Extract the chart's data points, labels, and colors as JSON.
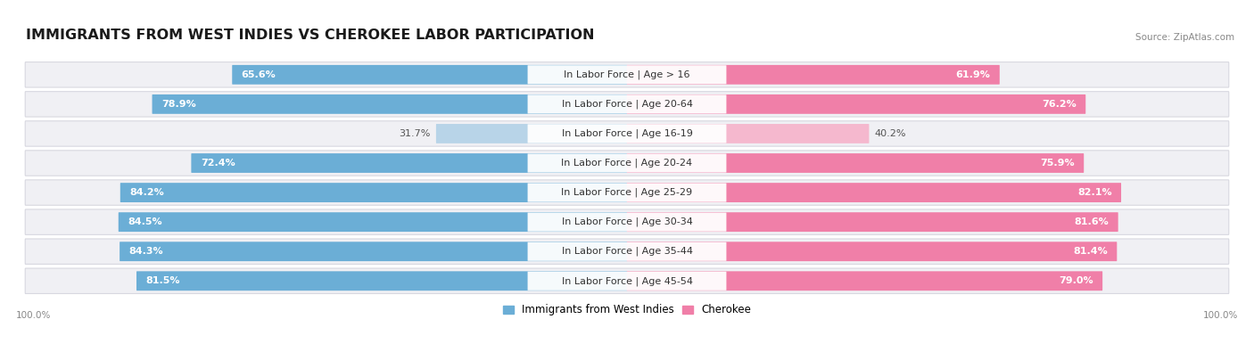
{
  "title": "IMMIGRANTS FROM WEST INDIES VS CHEROKEE LABOR PARTICIPATION",
  "source": "Source: ZipAtlas.com",
  "categories": [
    "In Labor Force | Age > 16",
    "In Labor Force | Age 20-64",
    "In Labor Force | Age 16-19",
    "In Labor Force | Age 20-24",
    "In Labor Force | Age 25-29",
    "In Labor Force | Age 30-34",
    "In Labor Force | Age 35-44",
    "In Labor Force | Age 45-54"
  ],
  "west_indies_values": [
    65.6,
    78.9,
    31.7,
    72.4,
    84.2,
    84.5,
    84.3,
    81.5
  ],
  "cherokee_values": [
    61.9,
    76.2,
    40.2,
    75.9,
    82.1,
    81.6,
    81.4,
    79.0
  ],
  "west_indies_color": "#6baed6",
  "west_indies_color_light": "#b8d4e8",
  "cherokee_color": "#f07fa8",
  "cherokee_color_light": "#f5b8ce",
  "row_bg_color": "#f0f0f4",
  "row_border_color": "#d8d8e0",
  "label_fontsize": 8.0,
  "value_fontsize": 8.0,
  "title_fontsize": 11.5,
  "legend_label_west_indies": "Immigrants from West Indies",
  "legend_label_cherokee": "Cherokee",
  "max_val": 100.0,
  "light_threshold": 50
}
